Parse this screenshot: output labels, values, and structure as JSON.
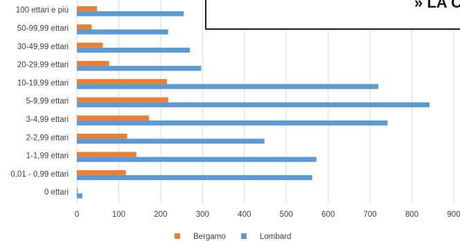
{
  "chart_data": {
    "type": "bar",
    "orientation": "horizontal",
    "title": "» LA C",
    "categories": [
      "100 ettari e più",
      "50-99,99 ettari",
      "30-49,99 ettari",
      "20-29,99 ettari",
      "10-19,99 ettari",
      "5-9,99 ettari",
      "3-4,99 ettari",
      "2-2,99 ettari",
      "1-1,99 ettari",
      "0,01 - 0,99 ettari",
      "0 ettari"
    ],
    "series": [
      {
        "name": "Bergamo",
        "color": "#ED7D31",
        "values": [
          48,
          35,
          62,
          77,
          215,
          218,
          172,
          120,
          142,
          117,
          2
        ]
      },
      {
        "name": "Lombard",
        "color": "#5B9BD5",
        "values": [
          255,
          218,
          270,
          297,
          720,
          842,
          742,
          448,
          572,
          562,
          13
        ]
      }
    ],
    "xlim": [
      0,
      900
    ],
    "x_ticks": [
      0,
      100,
      200,
      300,
      400,
      500,
      600,
      700,
      800,
      900
    ],
    "grid": true,
    "legend_position": "bottom"
  }
}
